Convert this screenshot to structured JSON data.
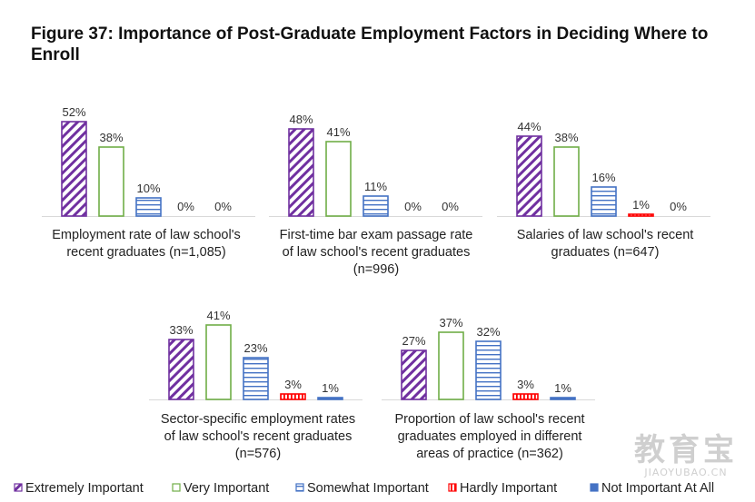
{
  "title": "Figure 37: Importance of Post-Graduate Employment Factors in Deciding Where to Enroll",
  "colors": {
    "extremely": "#7030a0",
    "very": "#70ad47",
    "somewhat": "#4472c4",
    "hardly": "#ff0000",
    "not": "#4472c4",
    "baseline": "#d9d9d9"
  },
  "chart_data": {
    "type": "bar",
    "value_suffix": "%",
    "series_names": [
      "Extremely Important",
      "Very Important",
      "Somewhat Important",
      "Hardly Important",
      "Not Important At All"
    ],
    "panels": [
      {
        "label_lines": [
          "Employment rate of law school's",
          "recent graduates (n=1,085)"
        ],
        "values": [
          52,
          38,
          10,
          0,
          0
        ]
      },
      {
        "label_lines": [
          "First-time bar exam passage rate",
          "of law school's recent graduates",
          "(n=996)"
        ],
        "values": [
          48,
          41,
          11,
          0,
          0
        ]
      },
      {
        "label_lines": [
          "Salaries of law school's recent",
          "graduates  (n=647)"
        ],
        "values": [
          44,
          38,
          16,
          1,
          0
        ]
      },
      {
        "label_lines": [
          "Sector-specific employment rates",
          "of law school's recent graduates",
          "(n=576)"
        ],
        "values": [
          33,
          41,
          23,
          3,
          1
        ]
      },
      {
        "label_lines": [
          "Proportion of law school's recent",
          "graduates employed in different",
          "areas of practice (n=362)"
        ],
        "values": [
          27,
          37,
          32,
          3,
          1
        ]
      }
    ]
  },
  "watermark": {
    "text_cn": "教育宝",
    "text_en": "JIAOYUBAO.CN"
  }
}
